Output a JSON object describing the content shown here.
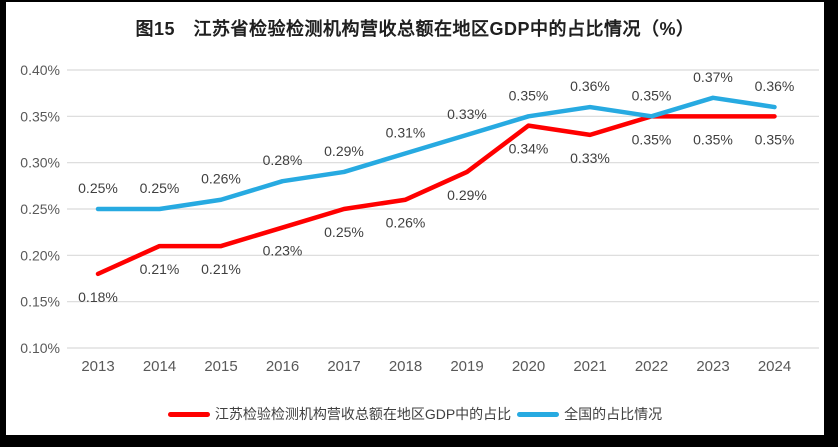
{
  "chart_data": {
    "type": "line",
    "title": "图15　江苏省检验检测机构营收总额在地区GDP中的占比情况（%）",
    "categories": [
      "2013",
      "2014",
      "2015",
      "2016",
      "2017",
      "2018",
      "2019",
      "2020",
      "2021",
      "2022",
      "2023",
      "2024"
    ],
    "unit": "%",
    "grid": true,
    "grid_color": "#D9D9D9",
    "axis_label_color": "#595959",
    "data_label_color": "#404040",
    "legend_position": "bottom",
    "y_axis": {
      "min": 0.1,
      "max": 0.4,
      "step": 0.05,
      "tick_labels": [
        "0.40%",
        "0.35%",
        "0.30%",
        "0.25%",
        "0.20%",
        "0.15%",
        "0.10%"
      ]
    },
    "series": [
      {
        "id": "jiangsu",
        "name": "江苏检验检测机构营收总额在地区GDP中的占比",
        "color": "#FF0000",
        "label_position": "below",
        "values": [
          0.18,
          0.21,
          0.21,
          0.23,
          0.25,
          0.26,
          0.29,
          0.34,
          0.33,
          0.35,
          0.35,
          0.35
        ],
        "point_labels": [
          "0.18%",
          "0.21%",
          "0.21%",
          "0.23%",
          "0.25%",
          "0.26%",
          "0.29%",
          "0.34%",
          "0.33%",
          "0.35%",
          "0.35%",
          "0.35%"
        ]
      },
      {
        "id": "national",
        "name": "全国的占比情况",
        "color": "#27AAE1",
        "label_position": "above",
        "values": [
          0.25,
          0.25,
          0.26,
          0.28,
          0.29,
          0.31,
          0.33,
          0.35,
          0.36,
          0.35,
          0.37,
          0.36
        ],
        "point_labels": [
          "0.25%",
          "0.25%",
          "0.26%",
          "0.28%",
          "0.29%",
          "0.31%",
          "0.33%",
          "0.35%",
          "0.36%",
          "0.35%",
          "0.37%",
          "0.36%"
        ]
      }
    ]
  }
}
